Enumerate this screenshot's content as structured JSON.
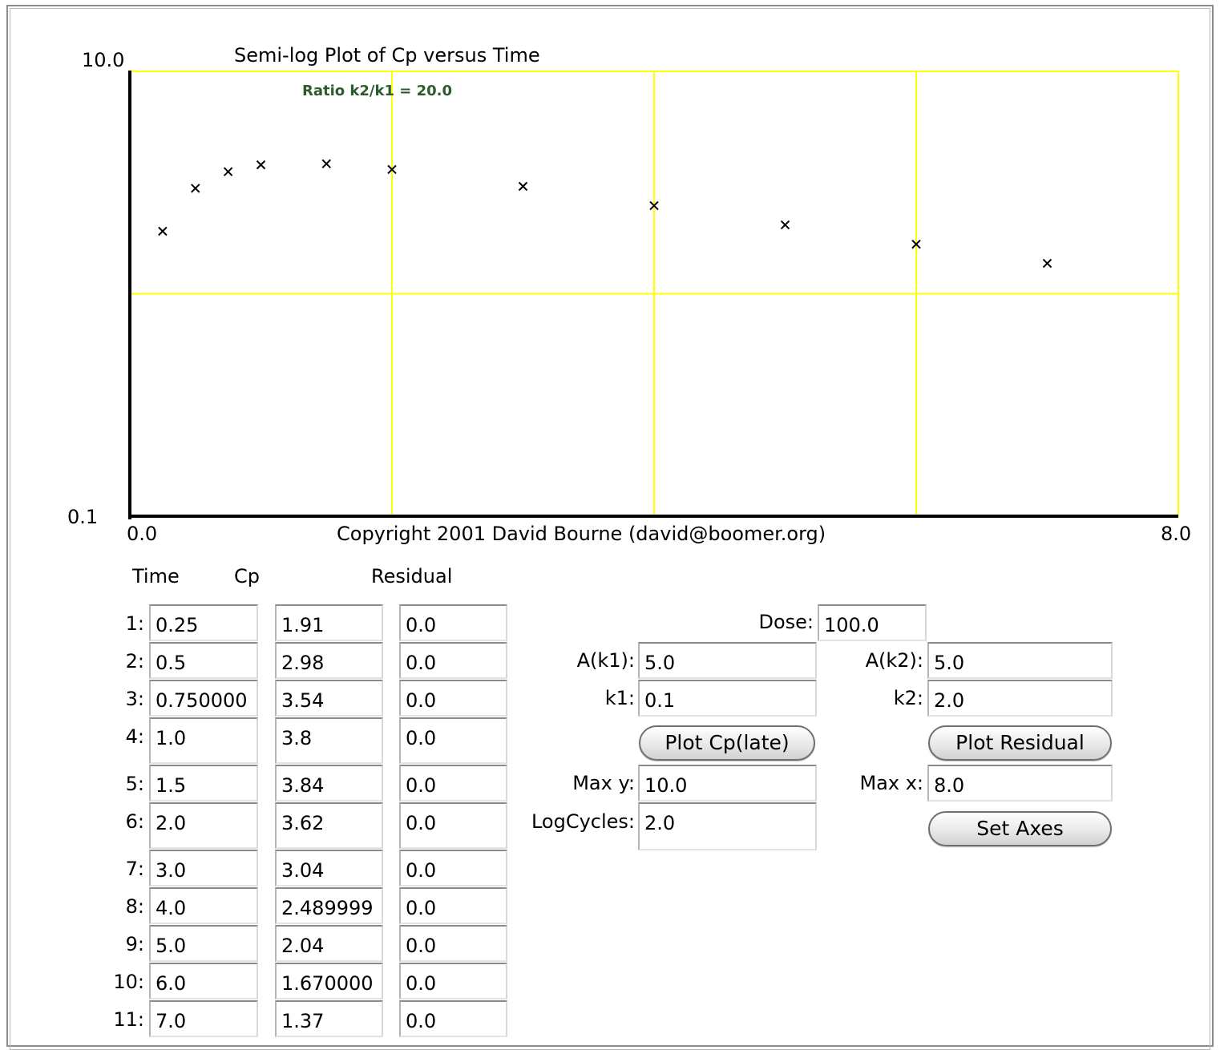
{
  "chart_data": {
    "type": "scatter",
    "title": "Semi-log Plot of Cp versus Time",
    "annotation": "Ratio k2/k1 = 20.0",
    "footer": "Copyright 2001 David Bourne (david@boomer.org)",
    "y_scale": "log",
    "x_range": [
      0.0,
      8.0
    ],
    "y_range": [
      0.1,
      10.0
    ],
    "x_tick_labels": [
      "0.0",
      "8.0"
    ],
    "y_tick_labels": [
      "10.0",
      "0.1"
    ],
    "grid": true,
    "grid_color": "#ffff00",
    "marker": "x",
    "points": [
      {
        "x": 0.25,
        "y": 1.91
      },
      {
        "x": 0.5,
        "y": 2.98
      },
      {
        "x": 0.75,
        "y": 3.54
      },
      {
        "x": 1.0,
        "y": 3.8
      },
      {
        "x": 1.5,
        "y": 3.84
      },
      {
        "x": 2.0,
        "y": 3.62
      },
      {
        "x": 3.0,
        "y": 3.04
      },
      {
        "x": 4.0,
        "y": 2.49
      },
      {
        "x": 5.0,
        "y": 2.04
      },
      {
        "x": 6.0,
        "y": 1.67
      },
      {
        "x": 7.0,
        "y": 1.37
      }
    ]
  },
  "table": {
    "headers": {
      "time": "Time",
      "cp": "Cp",
      "residual": "Residual"
    },
    "rows": [
      {
        "label": "1:",
        "time": "0.25",
        "cp": "1.91",
        "residual": "0.0"
      },
      {
        "label": "2:",
        "time": "0.5",
        "cp": "2.98",
        "residual": "0.0"
      },
      {
        "label": "3:",
        "time": "0.750000",
        "cp": "3.54",
        "residual": "0.0"
      },
      {
        "label": "4:",
        "time": "1.0",
        "cp": "3.8",
        "residual": "0.0"
      },
      {
        "label": "5:",
        "time": "1.5",
        "cp": "3.84",
        "residual": "0.0"
      },
      {
        "label": "6:",
        "time": "2.0",
        "cp": "3.62",
        "residual": "0.0"
      },
      {
        "label": "7:",
        "time": "3.0",
        "cp": "3.04",
        "residual": "0.0"
      },
      {
        "label": "8:",
        "time": "4.0",
        "cp": "2.489999",
        "residual": "0.0"
      },
      {
        "label": "9:",
        "time": "5.0",
        "cp": "2.04",
        "residual": "0.0"
      },
      {
        "label": "10:",
        "time": "6.0",
        "cp": "1.670000",
        "residual": "0.0"
      },
      {
        "label": "11:",
        "time": "7.0",
        "cp": "1.37",
        "residual": "0.0"
      }
    ]
  },
  "params": {
    "dose_label": "Dose:",
    "dose_value": "100.0",
    "ak1_label": "A(k1):",
    "ak1_value": "5.0",
    "ak2_label": "A(k2):",
    "ak2_value": "5.0",
    "k1_label": "k1:",
    "k1_value": "0.1",
    "k2_label": "k2:",
    "k2_value": "2.0",
    "plot_cp_late_button": "Plot Cp(late)",
    "plot_residual_button": "Plot Residual",
    "maxy_label": "Max y:",
    "maxy_value": "10.0",
    "maxx_label": "Max x:",
    "maxx_value": "8.0",
    "logcycles_label": "LogCycles:",
    "logcycles_value": "2.0",
    "set_axes_button": "Set Axes"
  }
}
